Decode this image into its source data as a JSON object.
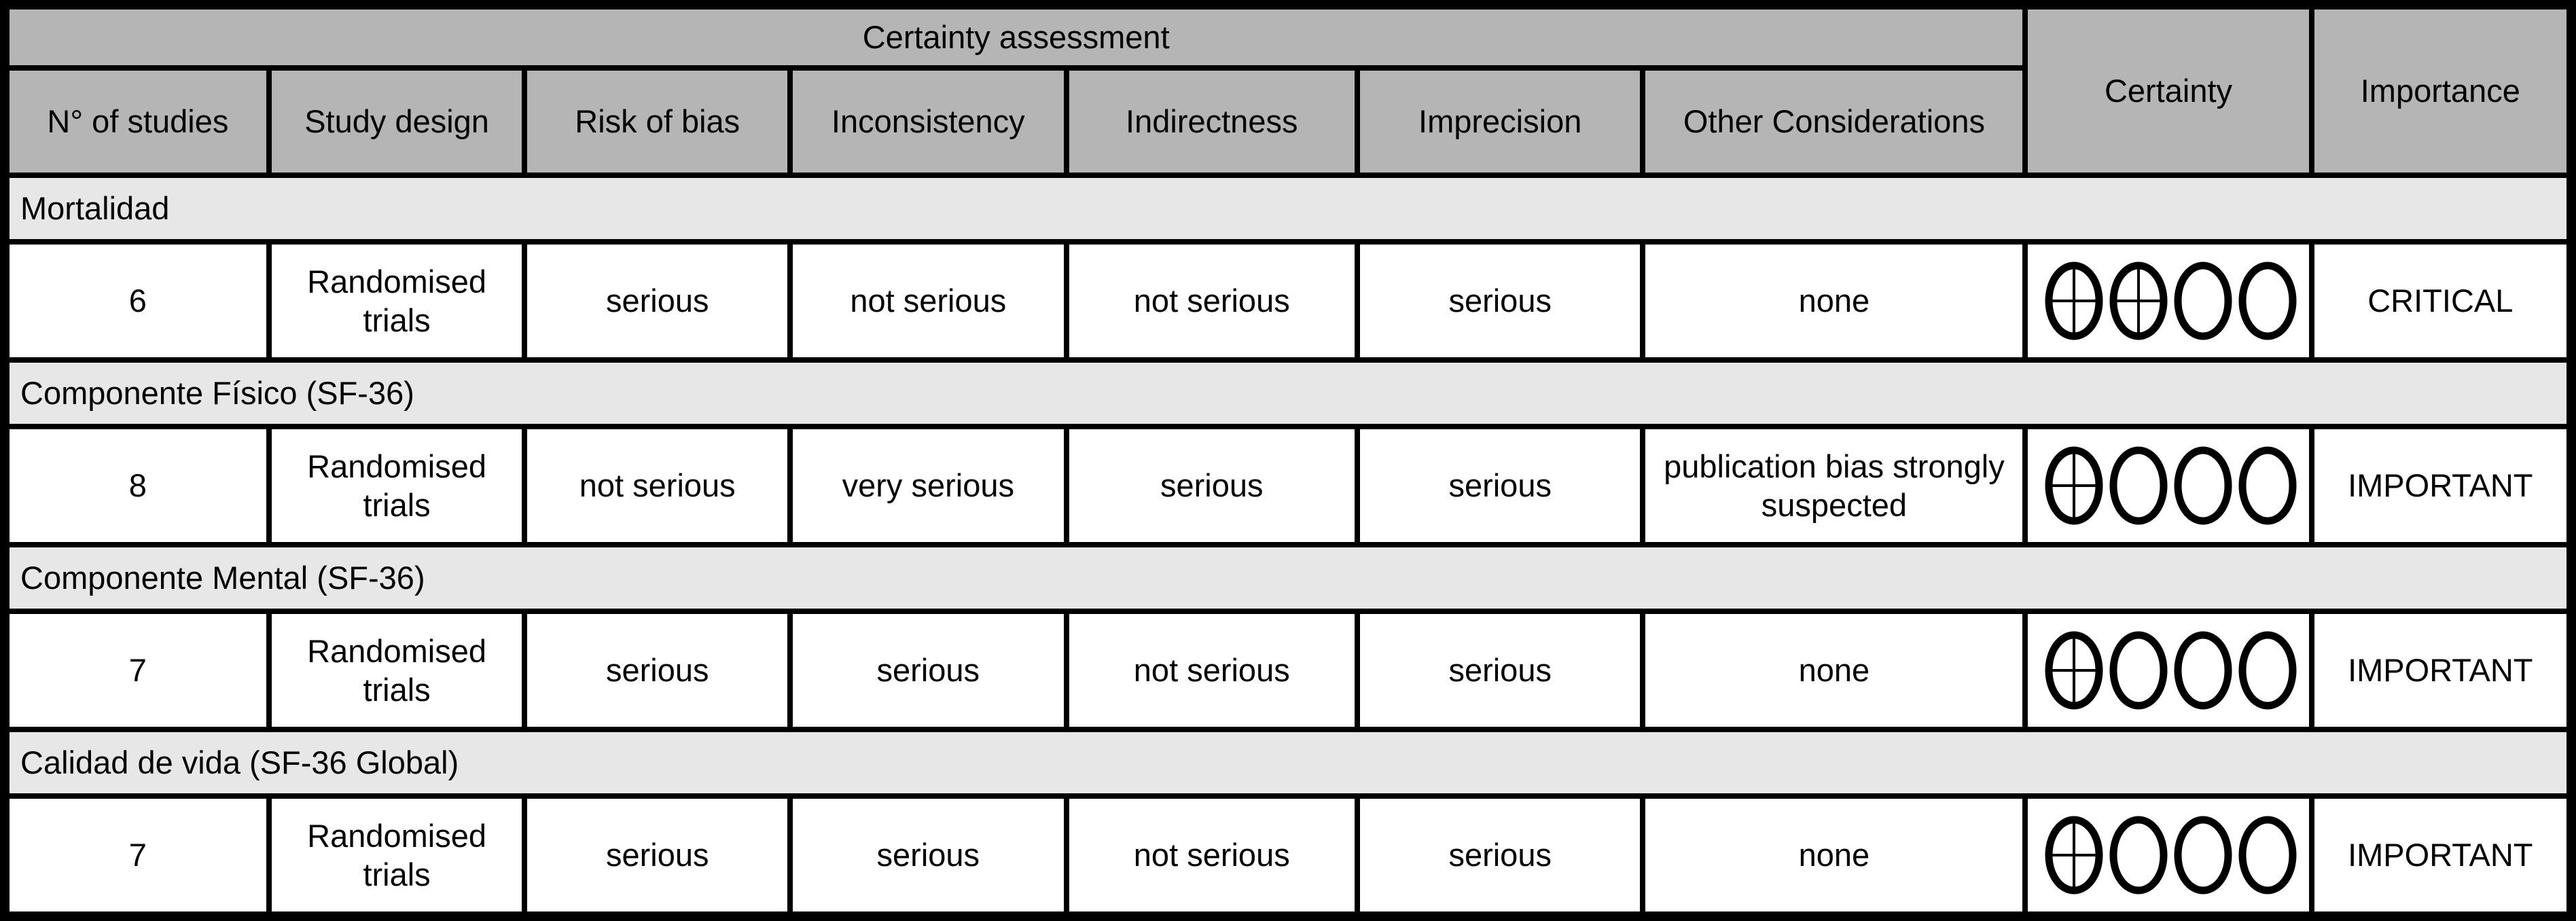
{
  "colors": {
    "header_bg": "#b5b5b5",
    "section_bg": "#e7e7e7",
    "row_bg": "#ffffff",
    "border": "#000000",
    "text": "#000000"
  },
  "table": {
    "header": {
      "group_label": "Certainty assessment",
      "columns": [
        "N° of studies",
        "Study design",
        "Risk of bias",
        "Inconsistency",
        "Indirectness",
        "Imprecision",
        "Other Considerations"
      ],
      "certainty_label": "Certainty",
      "importance_label": "Importance"
    },
    "sections": [
      {
        "title": "Mortalidad",
        "row": {
          "n_of_studies": "6",
          "study_design": "Randomised trials",
          "risk_of_bias": "serious",
          "inconsistency": "not serious",
          "indirectness": "not serious",
          "imprecision": "serious",
          "other_considerations": "none",
          "certainty_symbols": [
            "filled",
            "filled",
            "empty",
            "empty"
          ],
          "certainty_text": "⊕⊕◯◯",
          "importance": "CRITICAL"
        }
      },
      {
        "title": "Componente Físico (SF-36)",
        "row": {
          "n_of_studies": "8",
          "study_design": "Randomised trials",
          "risk_of_bias": "not serious",
          "inconsistency": "very serious",
          "indirectness": "serious",
          "imprecision": "serious",
          "other_considerations": "publication bias strongly suspected",
          "certainty_symbols": [
            "filled",
            "empty",
            "empty",
            "empty"
          ],
          "certainty_text": "⊕◯◯◯",
          "importance": "IMPORTANT"
        }
      },
      {
        "title": "Componente Mental (SF-36)",
        "row": {
          "n_of_studies": "7",
          "study_design": "Randomised trials",
          "risk_of_bias": "serious",
          "inconsistency": "serious",
          "indirectness": "not serious",
          "imprecision": "serious",
          "other_considerations": "none",
          "certainty_symbols": [
            "filled",
            "empty",
            "empty",
            "empty"
          ],
          "certainty_text": "⊕◯◯◯",
          "importance": "IMPORTANT"
        }
      },
      {
        "title": "Calidad de vida (SF-36 Global)",
        "row": {
          "n_of_studies": "7",
          "study_design": "Randomised trials",
          "risk_of_bias": "serious",
          "inconsistency": "serious",
          "indirectness": "not serious",
          "imprecision": "serious",
          "other_considerations": "none",
          "certainty_symbols": [
            "filled",
            "empty",
            "empty",
            "empty"
          ],
          "certainty_text": "⊕◯◯◯",
          "importance": "IMPORTANT"
        }
      }
    ]
  }
}
